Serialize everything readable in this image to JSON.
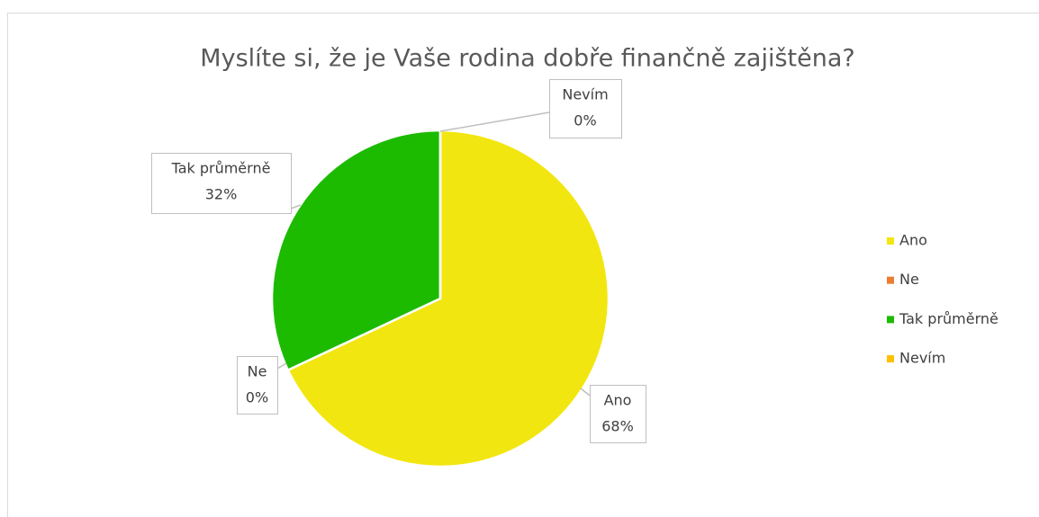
{
  "chart_data": {
    "type": "pie",
    "title": "Myslíte si, že je Vaše rodina dobře finančně zajištěna?",
    "categories": [
      "Ano",
      "Ne",
      "Tak průměrně",
      "Nevím"
    ],
    "values": [
      68,
      0,
      32,
      0
    ],
    "value_labels": [
      "68%",
      "0%",
      "32%",
      "0%"
    ],
    "colors": [
      "#f2e611",
      "#ed7d31",
      "#1cbb00",
      "#ffc000"
    ],
    "legend": "right"
  }
}
